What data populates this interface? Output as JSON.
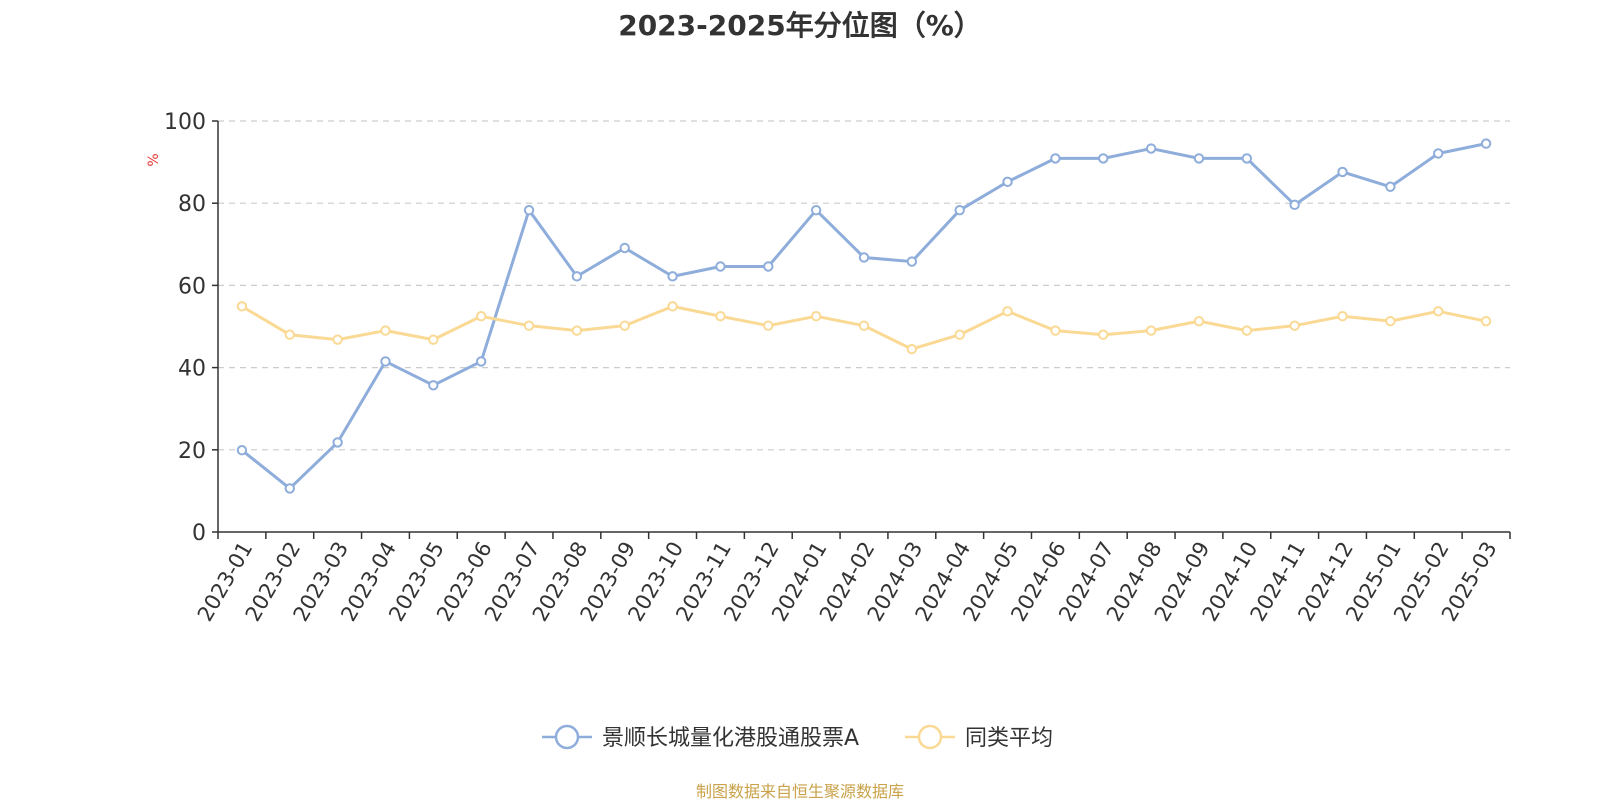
{
  "source_note": "制图数据来自恒生聚源数据库",
  "chart_data": {
    "type": "line",
    "title": "2023-2025年分位图（%）",
    "ylabel": "%",
    "xlabel": "",
    "ylim": [
      0,
      100
    ],
    "yticks": [
      0,
      20,
      40,
      60,
      80,
      100
    ],
    "grid": true,
    "legend_position": "bottom-center",
    "categories": [
      "2023-01",
      "2023-02",
      "2023-03",
      "2023-04",
      "2023-05",
      "2023-06",
      "2023-07",
      "2023-08",
      "2023-09",
      "2023-10",
      "2023-11",
      "2023-12",
      "2024-01",
      "2024-02",
      "2024-03",
      "2024-04",
      "2024-05",
      "2024-06",
      "2024-07",
      "2024-08",
      "2024-09",
      "2024-10",
      "2024-11",
      "2024-12",
      "2025-01",
      "2025-02",
      "2025-03"
    ],
    "series": [
      {
        "name": "景顺长城量化港股通股票A",
        "color": "#8eaddb",
        "values": [
          19.9,
          10.6,
          21.8,
          41.5,
          35.7,
          41.5,
          78.3,
          62.2,
          69.1,
          62.2,
          64.6,
          64.6,
          78.3,
          66.8,
          65.8,
          78.3,
          85.2,
          90.9,
          90.9,
          93.3,
          90.9,
          90.9,
          79.6,
          87.6,
          84.0,
          92.1,
          94.5
        ]
      },
      {
        "name": "同类平均",
        "color": "#fad995",
        "values": [
          54.9,
          48.0,
          46.8,
          49.0,
          46.8,
          52.5,
          50.2,
          49.0,
          50.2,
          54.9,
          52.5,
          50.2,
          52.5,
          50.2,
          44.5,
          48.0,
          53.7,
          49.0,
          48.0,
          49.0,
          51.3,
          49.0,
          50.2,
          52.5,
          51.3,
          53.7,
          51.3
        ]
      }
    ]
  }
}
